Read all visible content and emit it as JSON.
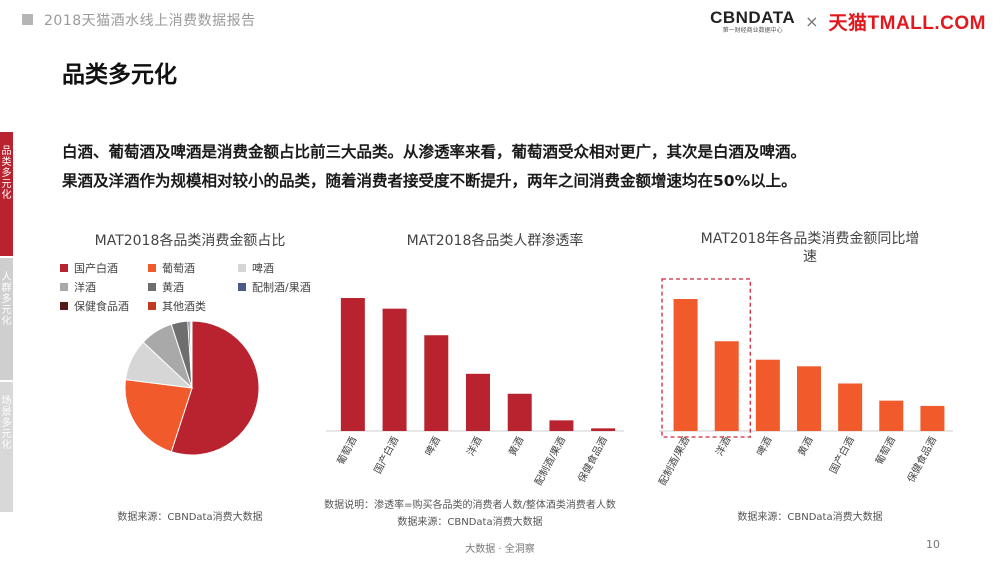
{
  "header": {
    "report_title": "2018天猫酒水线上消费数据报告",
    "logo_cbn": "CBNDATA",
    "logo_cbn_sub": "第一财经商业数据中心",
    "logo_separator": "×",
    "logo_tmall": "天猫TMALL.COM"
  },
  "page": {
    "heading": "品类多元化",
    "summary_line1": "白酒、葡萄酒及啤酒是消费金额占比前三大品类。从渗透率来看，葡萄酒受众相对更广，其次是白酒及啤酒。",
    "summary_line2": "果酒及洋酒作为规模相对较小的品类，随着消费者接受度不断提升，两年之间消费金额增速均在50%以上。",
    "side_tabs": [
      "品类多元化",
      "人群多元化",
      "场景多元化"
    ],
    "footer_center": "大数据 · 全洞察",
    "page_number": "10"
  },
  "colors": {
    "bar_red": "#b8232f",
    "bar_orange": "#f15a2b",
    "highlight_border": "#d0263a"
  },
  "chart_data": [
    {
      "type": "pie",
      "title": "MAT2018各品类消费金额占比",
      "categories": [
        "国产白酒",
        "葡萄酒",
        "啤酒",
        "洋酒",
        "黄酒",
        "配制酒/果酒",
        "保健食品酒",
        "其他酒类"
      ],
      "values": [
        55,
        22,
        10,
        8,
        4,
        0.5,
        0.3,
        0.2
      ],
      "colors": [
        "#b8232f",
        "#f15a2b",
        "#d6d6d6",
        "#a9a9a9",
        "#6e6e6e",
        "#4c5a8a",
        "#5a1a1a",
        "#c0391f"
      ],
      "legend": "top",
      "source": "数据来源：CBNData消费大数据"
    },
    {
      "type": "bar",
      "title": "MAT2018各品类人群渗透率",
      "categories": [
        "葡萄酒",
        "国产白酒",
        "啤酒",
        "洋酒",
        "黄酒",
        "配制酒/果酒",
        "保健食品酒"
      ],
      "values": [
        100,
        92,
        72,
        43,
        28,
        8,
        2
      ],
      "ylim": [
        0,
        100
      ],
      "color": "#b8232f",
      "note": "数据说明：渗透率=购买各品类的消费者人数/整体酒类消费者人数",
      "source": "数据来源：CBNData消费大数据"
    },
    {
      "type": "bar",
      "title_line1": "MAT2018年各品类消费金额同比增",
      "title_line2": "速",
      "categories": [
        "配制酒/果酒",
        "洋酒",
        "啤酒",
        "黄酒",
        "国产白酒",
        "葡萄酒",
        "保健食品酒"
      ],
      "values": [
        100,
        68,
        54,
        49,
        36,
        23,
        19
      ],
      "ylim": [
        0,
        100
      ],
      "color": "#f15a2b",
      "highlighted": [
        "配制酒/果酒",
        "洋酒"
      ],
      "source": "数据来源：CBNData消费大数据"
    }
  ]
}
